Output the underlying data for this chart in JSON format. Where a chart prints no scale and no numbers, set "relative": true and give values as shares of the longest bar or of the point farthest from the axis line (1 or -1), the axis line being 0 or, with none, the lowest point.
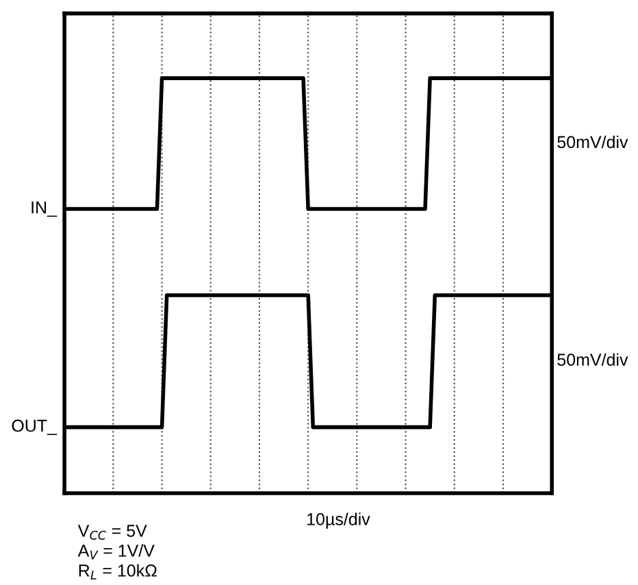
{
  "chart_data": {
    "type": "line",
    "relative": true,
    "categories": [
      null,
      null,
      null,
      null,
      null,
      null,
      null,
      null,
      null,
      null,
      null,
      null,
      null,
      null,
      null,
      null,
      null,
      null,
      null,
      null,
      null,
      null,
      null,
      null,
      null,
      null,
      null,
      null,
      null,
      null,
      null,
      null,
      null,
      null,
      null,
      null,
      null,
      null,
      null,
      null,
      null,
      null,
      null,
      null,
      null,
      null,
      null,
      null,
      null,
      null,
      null,
      null,
      null,
      null,
      null,
      null,
      null,
      null,
      null,
      null,
      null,
      null,
      null,
      null,
      null,
      null,
      null,
      null,
      null,
      null,
      null,
      null,
      null,
      null,
      null,
      null,
      null,
      null,
      null,
      null,
      null,
      null,
      null,
      null,
      null,
      null,
      null,
      null,
      null,
      null,
      null,
      null,
      null,
      null,
      null,
      null,
      null,
      null,
      null,
      null,
      null
    ],
    "series": [
      {
        "name": "IN_",
        "color": "#000000",
        "values": [
          0.685,
          0.685,
          0.685,
          0.685,
          0.685,
          0.685,
          0.685,
          0.685,
          0.685,
          0.685,
          0.685,
          0.685,
          0.685,
          0.685,
          0.685,
          0.685,
          0.685,
          0.685,
          0.685,
          0.685,
          1,
          1,
          1,
          1,
          1,
          1,
          1,
          1,
          1,
          1,
          1,
          1,
          1,
          1,
          1,
          1,
          1,
          1,
          1,
          1,
          1,
          1,
          1,
          1,
          1,
          1,
          1,
          1,
          1,
          1,
          0.685,
          0.685,
          0.685,
          0.685,
          0.685,
          0.685,
          0.685,
          0.685,
          0.685,
          0.685,
          0.685,
          0.685,
          0.685,
          0.685,
          0.685,
          0.685,
          0.685,
          0.685,
          0.685,
          0.685,
          0.685,
          0.685,
          0.685,
          0.685,
          0.685,
          1,
          1,
          1,
          1,
          1,
          1,
          1,
          1,
          1,
          1,
          1,
          1,
          1,
          1,
          1,
          1,
          1,
          1,
          1,
          1,
          1,
          1,
          1,
          1,
          1,
          1
        ]
      },
      {
        "name": "OUT_",
        "color": "#000000",
        "values": [
          0.159,
          0.159,
          0.159,
          0.159,
          0.159,
          0.159,
          0.159,
          0.159,
          0.159,
          0.159,
          0.159,
          0.159,
          0.159,
          0.159,
          0.159,
          0.159,
          0.159,
          0.159,
          0.159,
          0.159,
          0.159,
          0.477,
          0.477,
          0.477,
          0.477,
          0.477,
          0.477,
          0.477,
          0.477,
          0.477,
          0.477,
          0.477,
          0.477,
          0.477,
          0.477,
          0.477,
          0.477,
          0.477,
          0.477,
          0.477,
          0.477,
          0.477,
          0.477,
          0.477,
          0.477,
          0.477,
          0.477,
          0.477,
          0.477,
          0.477,
          0.477,
          0.159,
          0.159,
          0.159,
          0.159,
          0.159,
          0.159,
          0.159,
          0.159,
          0.159,
          0.159,
          0.159,
          0.159,
          0.159,
          0.159,
          0.159,
          0.159,
          0.159,
          0.159,
          0.159,
          0.159,
          0.159,
          0.159,
          0.159,
          0.159,
          0.159,
          0.477,
          0.477,
          0.477,
          0.477,
          0.477,
          0.477,
          0.477,
          0.477,
          0.477,
          0.477,
          0.477,
          0.477,
          0.477,
          0.477,
          0.477,
          0.477,
          0.477,
          0.477,
          0.477,
          0.477,
          0.477,
          0.477,
          0.477,
          0.477,
          0.477
        ]
      }
    ],
    "grid": "x",
    "line_style": "solid",
    "annotations": [
      "50mV/div",
      "50mV/div",
      "10µs/div",
      "V$_{CC}$ = 5V",
      "A$_{V}$ = 1V/V",
      "R$_{L}$ = 10kΩ"
    ]
  }
}
